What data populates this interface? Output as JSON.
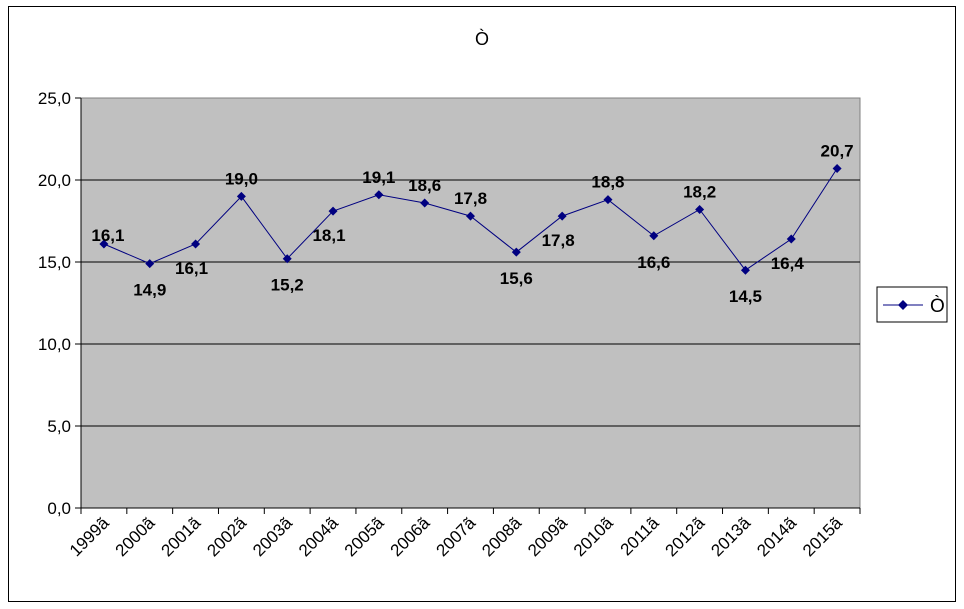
{
  "chart_data": {
    "type": "line",
    "title": "Ò",
    "categories": [
      "1999ã",
      "2000ã",
      "2001ã",
      "2002ã",
      "2003ã",
      "2004ã",
      "2005ã",
      "2006ã",
      "2007ã",
      "2008ã",
      "2009ã",
      "2010ã",
      "2011ã",
      "2012ã",
      "2013ã",
      "2014ã",
      "2015ã"
    ],
    "series": [
      {
        "name": "Ò",
        "values": [
          16.1,
          14.9,
          16.1,
          19.0,
          15.2,
          18.1,
          19.1,
          18.6,
          17.8,
          15.6,
          17.8,
          18.8,
          16.6,
          18.2,
          14.5,
          16.4,
          20.7
        ],
        "labels": [
          "16,1",
          "14,9",
          "16,1",
          "19,0",
          "15,2",
          "18,1",
          "19,1",
          "18,6",
          "17,8",
          "15,6",
          "17,8",
          "18,8",
          "16,6",
          "18,2",
          "14,5",
          "16,4",
          "20,7"
        ],
        "color": "#000080"
      }
    ],
    "ylim": [
      0,
      25
    ],
    "yticks": [
      "0,0",
      "5,0",
      "10,0",
      "15,0",
      "20,0",
      "25,0"
    ],
    "ytick_values": [
      0,
      5,
      10,
      15,
      20,
      25
    ],
    "grid": true,
    "plot_background": "#c0c0c0",
    "legend_position": "right",
    "xlabel": "",
    "ylabel": ""
  }
}
